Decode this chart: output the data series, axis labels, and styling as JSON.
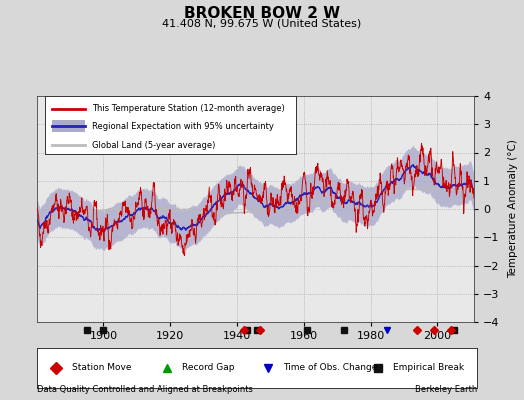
{
  "title": "BROKEN BOW 2 W",
  "subtitle": "41.408 N, 99.675 W (United States)",
  "ylabel": "Temperature Anomaly (°C)",
  "xlabel_note": "Data Quality Controlled and Aligned at Breakpoints",
  "credit": "Berkeley Earth",
  "year_start": 1880,
  "year_end": 2011,
  "ylim": [
    -4,
    4
  ],
  "yticks": [
    -4,
    -3,
    -2,
    -1,
    0,
    1,
    2,
    3,
    4
  ],
  "xticks": [
    1900,
    1920,
    1940,
    1960,
    1980,
    2000
  ],
  "bg_color": "#d8d8d8",
  "plot_bg_color": "#e8e8e8",
  "station_line_color": "#cc0000",
  "regional_line_color": "#2222bb",
  "regional_fill_color": "#aaaacc",
  "global_line_color": "#bbbbbb",
  "station_move_color": "#cc0000",
  "record_gap_color": "#009900",
  "tobs_change_color": "#0000cc",
  "emp_break_color": "#111111",
  "station_moves": [
    1942,
    1947,
    1994,
    1999,
    2004
  ],
  "record_gaps": [],
  "tobs_changes": [
    1985
  ],
  "emp_breaks": [
    1895,
    1900,
    1943,
    1946,
    1961,
    1972,
    2005
  ],
  "seed": 42
}
